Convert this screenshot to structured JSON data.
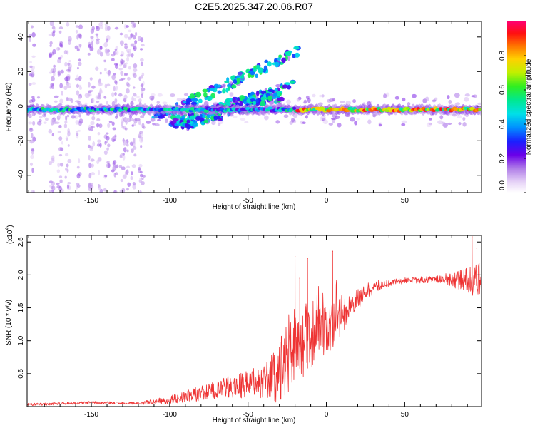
{
  "title": "C2E5.2025.347.20.06.R07",
  "colors": {
    "snr_line": "#ee3333",
    "axis": "#000000",
    "background": "#ffffff"
  },
  "chart_data": [
    {
      "type": "heatmap",
      "name": "spectrogram",
      "xlabel": "Height of straight line (km)",
      "ylabel": "Frequency (Hz)",
      "xlim": [
        -191,
        99
      ],
      "ylim": [
        -50,
        49
      ],
      "xticks": [
        -150,
        -100,
        -50,
        0,
        50
      ],
      "yticks": [
        -40,
        -20,
        0,
        20,
        40
      ],
      "colorbar": {
        "label": "Normalized spectral amplitude",
        "range": [
          0,
          1
        ],
        "ticks": [
          0.0,
          0.2,
          0.4,
          0.6,
          0.8
        ],
        "tick_labels": [
          "0.0",
          "0.2",
          "0.4",
          "0.6",
          "0.8"
        ]
      },
      "features": {
        "main_band": {
          "x_from": -191,
          "x_to": 99,
          "freq_center": -2,
          "freq_halfwidth": 3
        },
        "rising_branches": [
          {
            "x_from": -110,
            "x_to": -18,
            "freq_from": -8,
            "freq_to": 32
          },
          {
            "x_from": -100,
            "x_to": -20,
            "freq_from": -10,
            "freq_to": 12
          },
          {
            "x_from": -95,
            "x_to": -28,
            "freq_from": -12,
            "freq_to": 6
          }
        ],
        "vertical_streaks_x": [
          -188,
          -175,
          -170,
          -165,
          -158,
          -150,
          -145,
          -140,
          -135,
          -130,
          -127,
          -123,
          -118
        ]
      }
    },
    {
      "type": "line",
      "name": "snr",
      "xlabel": "Height of straight line (km)",
      "ylabel": "SNR (10 * v/v)",
      "multiplier_label": "(x10",
      "multiplier_exp": "4",
      "xlim": [
        -191,
        99
      ],
      "ylim": [
        0,
        2.6
      ],
      "xticks": [
        -150,
        -100,
        -50,
        0,
        50
      ],
      "yticks": [
        0.5,
        1.0,
        1.5,
        2.0,
        2.5
      ],
      "ytick_labels": [
        "0.5",
        "1.0",
        "1.5",
        "2.0",
        "2.5"
      ],
      "envelope": {
        "x": [
          -191,
          -150,
          -120,
          -100,
          -80,
          -60,
          -40,
          -30,
          -22,
          -15,
          -5,
          5,
          15,
          25,
          35,
          45,
          55,
          65,
          75,
          85,
          90,
          95,
          99
        ],
        "y": [
          0.03,
          0.06,
          0.05,
          0.1,
          0.2,
          0.3,
          0.38,
          0.5,
          0.75,
          0.95,
          1.1,
          1.25,
          1.5,
          1.75,
          1.85,
          1.9,
          1.92,
          1.93,
          1.93,
          1.92,
          1.92,
          1.9,
          1.9
        ]
      },
      "noise_amplitude": {
        "x": [
          -191,
          -120,
          -100,
          -80,
          -60,
          -40,
          -25,
          -10,
          5,
          20,
          40,
          70,
          85,
          99
        ],
        "y": [
          0.02,
          0.02,
          0.06,
          0.12,
          0.18,
          0.25,
          0.6,
          0.45,
          0.35,
          0.15,
          0.05,
          0.05,
          0.15,
          0.3
        ]
      },
      "spikes": [
        {
          "x": -20,
          "y": 2.28
        },
        {
          "x": -17,
          "y": 1.95
        },
        {
          "x": -12,
          "y": 2.25
        },
        {
          "x": 4,
          "y": 2.36
        },
        {
          "x": 93,
          "y": 2.58
        },
        {
          "x": 96,
          "y": 2.4
        }
      ]
    }
  ]
}
